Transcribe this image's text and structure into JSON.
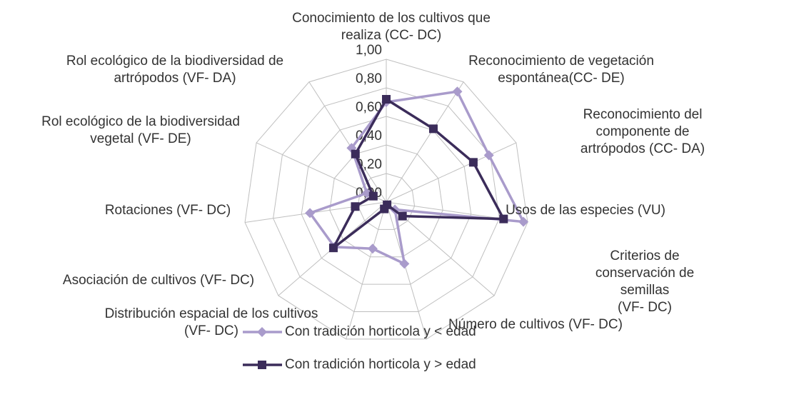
{
  "chart_data": {
    "type": "radar",
    "categories": [
      "Conocimiento de los cultivos que\nrealiza (CC- DC)",
      "Reconocimiento de vegetación\nespontánea(CC- DE)",
      "Reconocimiento del componente de\nartrópodos (CC- DA)",
      "Usos de las especies (VU)",
      "Criterios de conservación de semillas\n(VF- DC)",
      "Número de cultivos (VF- DC)",
      "Distribución espacial de los cultivos\n(VF- DC)",
      "Asociación de cultivos (VF- DC)",
      "Rotaciones (VF- DC)",
      "Rol ecológico de la biodiversidad\nvegetal (VF- DE)",
      "Rol ecológico de la biodiversidad de\nartrópodos (VF- DA)"
    ],
    "series": [
      {
        "name": "Con tradición horticola y < edad",
        "color": "#a99bcb",
        "marker": "diamond",
        "values": [
          0.7,
          0.92,
          0.79,
          0.97,
          0.08,
          0.45,
          0.34,
          0.48,
          0.54,
          0.15,
          0.45
        ]
      },
      {
        "name": "Con tradición horticola y > edad",
        "color": "#3b2c5a",
        "marker": "square",
        "values": [
          0.72,
          0.61,
          0.67,
          0.83,
          0.15,
          0.02,
          0.05,
          0.49,
          0.22,
          0.1,
          0.4
        ]
      }
    ],
    "rlim": [
      0,
      1
    ],
    "rticks": [
      {
        "value": 0,
        "label": "0,00"
      },
      {
        "value": 0.2,
        "label": "0,20"
      },
      {
        "value": 0.4,
        "label": "0,40"
      },
      {
        "value": 0.6,
        "label": "0,60"
      },
      {
        "value": 0.8,
        "label": "0,80"
      },
      {
        "value": 1,
        "label": "1,00"
      }
    ],
    "grid": true,
    "legend": "bottom"
  }
}
